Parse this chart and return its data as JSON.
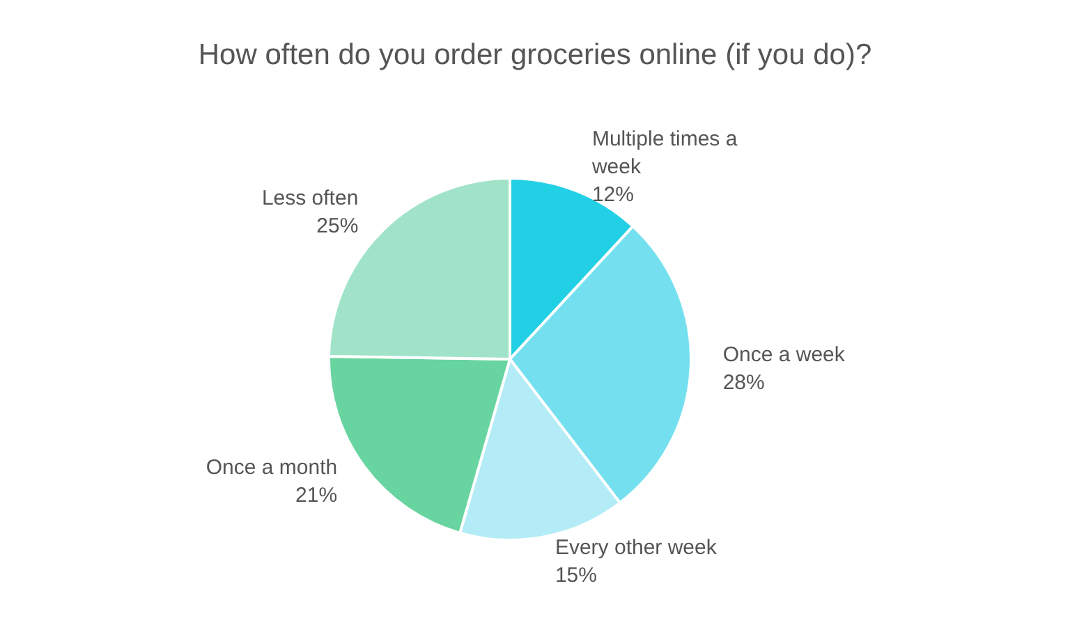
{
  "chart_data": {
    "type": "pie",
    "title": "How often do you order groceries online (if you do)?",
    "categories": [
      "Multiple times a week",
      "Once a week",
      "Every other week",
      "Once a month",
      "Less often"
    ],
    "values": [
      12,
      28,
      15,
      21,
      25
    ],
    "colors": [
      "#22d0e6",
      "#74e0ef",
      "#b3ecf6",
      "#68d4a0",
      "#a0e3c8"
    ],
    "value_labels": [
      "12%",
      "28%",
      "15%",
      "21%",
      "25%"
    ],
    "legend": false
  }
}
